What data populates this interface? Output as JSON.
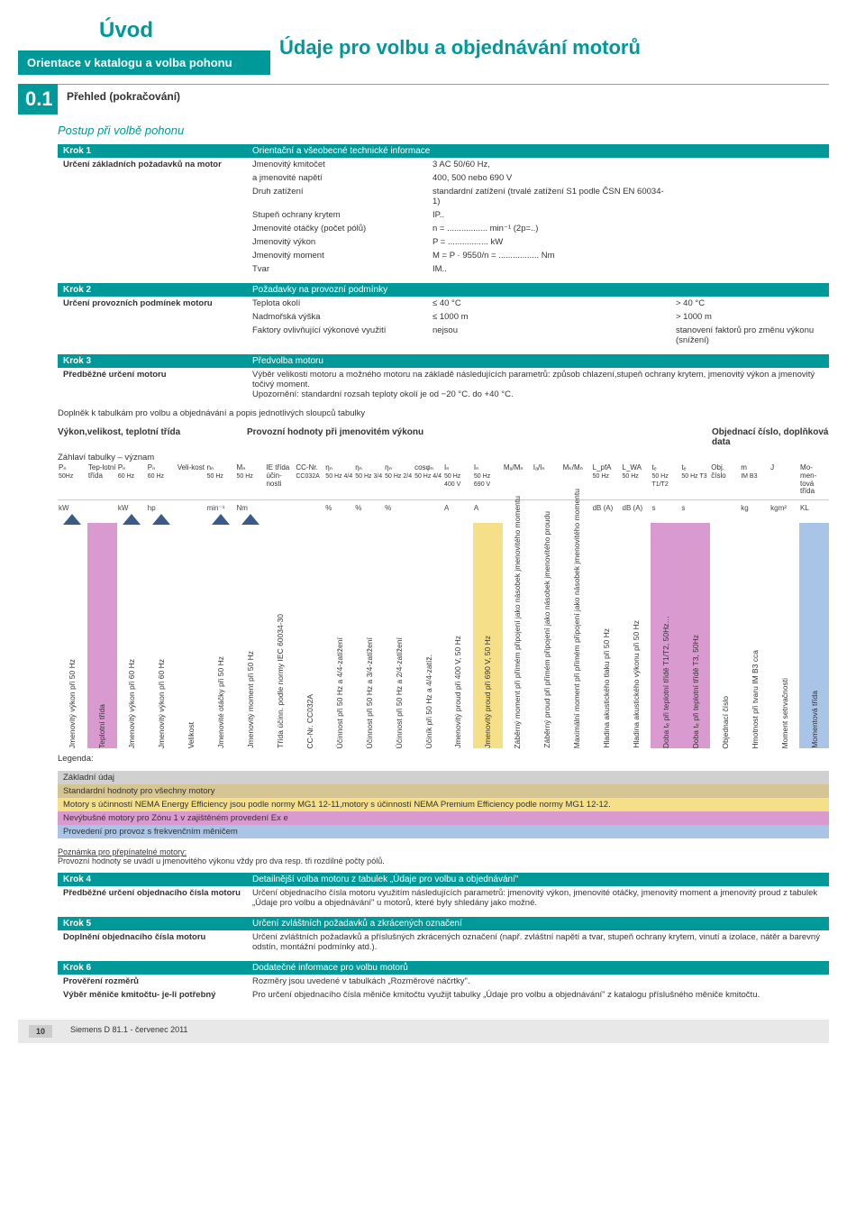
{
  "meta": {
    "uvod": "Úvod",
    "orientation": "Orientace v katalogu a volba pohonu",
    "main_title": "Údaje pro volbu a objednávání motorů",
    "section_num": "0.1",
    "section_title": "Přehled (pokračování)",
    "subtitle": "Postup při volbě pohonu"
  },
  "step1": {
    "header_left": "Krok 1",
    "header_right": "Orientační a všeobecné technické informace",
    "left": "Určení základních požadavků na motor",
    "rows": [
      [
        "Jmenovitý kmitočet",
        "3 AC 50/60 Hz,",
        ""
      ],
      [
        "a jmenovité napětí",
        "400, 500 nebo 690 V",
        ""
      ],
      [
        "Druh zatížení",
        "standardní zatížení (trvalé zatížení S1 podle ČSN EN 60034-1)",
        ""
      ],
      [
        "Stupeň ochrany krytem",
        "IP..",
        ""
      ],
      [
        "Jmenovité otáčky (počet pólů)",
        "n = ................. min⁻¹  (2p=..)",
        ""
      ],
      [
        "Jmenovitý výkon",
        "P = ................. kW",
        ""
      ],
      [
        "Jmenovitý moment",
        "M = P · 9550/n = ................. Nm",
        ""
      ],
      [
        "Tvar",
        "IM..",
        ""
      ]
    ]
  },
  "step2": {
    "header_left": "Krok 2",
    "header_right": "Požadavky na provozní podmínky",
    "left": "Určení provozních podmínek motoru",
    "rows": [
      [
        "Teplota okolí",
        "≤ 40 °C",
        "> 40 °C"
      ],
      [
        "Nadmořská výška",
        "≤ 1000 m",
        "> 1000 m"
      ],
      [
        "Faktory ovlivňující výkonové využití",
        "nejsou",
        "stanovení faktorů pro změnu výkonu (snížení)"
      ]
    ]
  },
  "step3": {
    "header_left": "Krok 3",
    "header_right": "Předvolba motoru",
    "left": "Předběžné určení motoru",
    "text1": "Výběr velikosti motoru a možného motoru na základě následujících parametrů: způsob chlazení,stupeň ochrany krytem, jmenovitý výkon a jmenovitý točivý moment.",
    "text2": "Upozornění:  standardní rozsah teploty okolí je od −20 °C. do +40 °C."
  },
  "tabledesc": {
    "intro": "Doplněk k tabulkám pro volbu a objednávání a popis jednotlivých sloupců tabulky",
    "left": "Výkon,velikost, teplotní třída",
    "mid": "Provozní hodnoty při jmenovitém výkonu",
    "right": "Objednací číslo, doplňková data",
    "zahlavi": "Záhlaví tabulky – význam"
  },
  "param_cols": [
    {
      "t": "Pₙ",
      "s": "50Hz",
      "u": "kW"
    },
    {
      "t": "Tep-lotní třída",
      "s": "",
      "u": ""
    },
    {
      "t": "Pₙ",
      "s": "60 Hz",
      "u": "kW"
    },
    {
      "t": "Pₙ",
      "s": "60 Hz",
      "u": "hp"
    },
    {
      "t": "Veli-kost",
      "s": "",
      "u": ""
    },
    {
      "t": "nₙ",
      "s": "50 Hz",
      "u": "min⁻¹"
    },
    {
      "t": "Mₙ",
      "s": "50 Hz",
      "u": "Nm"
    },
    {
      "t": "IE třída účin-nosti",
      "s": "",
      "u": ""
    },
    {
      "t": "CC-Nr.",
      "s": "CC032A",
      "u": ""
    },
    {
      "t": "ηₙ",
      "s": "50 Hz 4/4",
      "u": "%"
    },
    {
      "t": "ηₙ",
      "s": "50 Hz 3/4",
      "u": "%"
    },
    {
      "t": "ηₙ",
      "s": "50 Hz 2/4",
      "u": "%"
    },
    {
      "t": "cosφₙ",
      "s": "50 Hz 4/4",
      "u": ""
    },
    {
      "t": "Iₙ",
      "s": "50 Hz 400 V",
      "u": "A"
    },
    {
      "t": "Iₙ",
      "s": "50 Hz 690 V",
      "u": "A"
    },
    {
      "t": "Mₐ/Mₙ",
      "s": "",
      "u": ""
    },
    {
      "t": "Iₐ/Iₙ",
      "s": "",
      "u": ""
    },
    {
      "t": "Mₖ/Mₙ",
      "s": "",
      "u": ""
    },
    {
      "t": "L_pfA",
      "s": "50 Hz",
      "u": "dB (A)"
    },
    {
      "t": "L_WA",
      "s": "50 Hz",
      "u": "dB (A)"
    },
    {
      "t": "tₑ",
      "s": "50 Hz T1/T2",
      "u": "s"
    },
    {
      "t": "tₑ",
      "s": "50 Hz T3",
      "u": "s"
    },
    {
      "t": "Obj. číslo",
      "s": "",
      "u": ""
    },
    {
      "t": "m",
      "s": "IM B3",
      "u": "kg"
    },
    {
      "t": "J",
      "s": "",
      "u": "kgm²"
    },
    {
      "t": "Mo-men-tová třída",
      "s": "",
      "u": "KL"
    }
  ],
  "vlegend": [
    {
      "label": "Jmenovitý výkon při 50 Hz",
      "bg": "#ffffff",
      "tri": "#3a5a8a"
    },
    {
      "label": "Teplotní třída",
      "bg": "#d99bcf",
      "tri": ""
    },
    {
      "label": "Jmenovitý výkon při 60 Hz",
      "bg": "#ffffff",
      "tri": "#3a5a8a"
    },
    {
      "label": "Jmenovitý výkon při 60 Hz",
      "bg": "#ffffff",
      "tri": "#3a5a8a"
    },
    {
      "label": "Velikost",
      "bg": "#ffffff",
      "tri": ""
    },
    {
      "label": "Jmenovité otáčky při 50 Hz",
      "bg": "#ffffff",
      "tri": "#3a5a8a"
    },
    {
      "label": "Jmenovitý moment při 50 Hz",
      "bg": "#ffffff",
      "tri": "#3a5a8a"
    },
    {
      "label": "Třída účinn. podle normy IEC 60034-30",
      "bg": "#ffffff",
      "tri": ""
    },
    {
      "label": "CC-Nr. CC032A",
      "bg": "#ffffff",
      "tri": ""
    },
    {
      "label": "Účinnost při 50 Hz a 4/4-zatížení",
      "bg": "#ffffff",
      "tri": ""
    },
    {
      "label": "Účinnost při 50 Hz a 3/4-zatížení",
      "bg": "#ffffff",
      "tri": ""
    },
    {
      "label": "Účinnost při 50 Hz a 2/4-zatížení",
      "bg": "#ffffff",
      "tri": ""
    },
    {
      "label": "Účiník při 50 Hz a 4/4-zatíž.",
      "bg": "#ffffff",
      "tri": ""
    },
    {
      "label": "Jmenovitý proud při 400 V, 50 Hz",
      "bg": "#ffffff",
      "tri": ""
    },
    {
      "label": "Jmenovitý proud při 690 V, 50 Hz",
      "bg": "#f5e089",
      "tri": ""
    },
    {
      "label": "Záběrný moment při přímém připojení jako násobek jmenovitého momentu",
      "bg": "#ffffff",
      "tri": ""
    },
    {
      "label": "Záběrný proud při přímém připojení jako násobek jmenovitého proudu",
      "bg": "#ffffff",
      "tri": ""
    },
    {
      "label": "Maximální moment při přímém připojení jako násobek jmenovitého momentu",
      "bg": "#ffffff",
      "tri": ""
    },
    {
      "label": "Hladina akustického tlaku při 50 Hz",
      "bg": "#ffffff",
      "tri": ""
    },
    {
      "label": "Hladina akustického výkonu při 50 Hz",
      "bg": "#ffffff",
      "tri": ""
    },
    {
      "label": "Doba tₑ při teplotní třídě T1/T2, 50Hz…",
      "bg": "#d99bcf",
      "tri": ""
    },
    {
      "label": "Doba tₑ při teplotní třídě T3, 50Hz",
      "bg": "#d99bcf",
      "tri": ""
    },
    {
      "label": "Objednací číslo",
      "bg": "#ffffff",
      "tri": ""
    },
    {
      "label": "Hmotnost při tvaru IM B3 cca",
      "bg": "#ffffff",
      "tri": ""
    },
    {
      "label": "Moment setrvačnosti",
      "bg": "#ffffff",
      "tri": ""
    },
    {
      "label": "Momentová třída",
      "bg": "#a8c5e8",
      "tri": ""
    }
  ],
  "legend_label": "Legenda:",
  "bands": [
    {
      "cls": "band-gray",
      "text": "Základní údaj"
    },
    {
      "cls": "band-gold",
      "text": "Standardní hodnoty pro všechny motory"
    },
    {
      "cls": "band-yellow",
      "text": "Motory s účinností NEMA Energy Efficiency jsou podle normy MG1 12-11,motory s účinností NEMA Premium Efficiency podle normy MG1 12-12."
    },
    {
      "cls": "band-magenta",
      "text": "Nevýbušné motory pro Zónu 1 v zajištěném provedení Ex e"
    },
    {
      "cls": "band-blue",
      "text": "Provedení pro provoz s frekvenčním měničem"
    }
  ],
  "note": {
    "title": "Poznámka pro přepínatelné motory:",
    "text": "Provozní hodnoty se uvádí u jmenovitého výkonu vždy pro dva resp. tři rozdílné počty pólů."
  },
  "step4": {
    "header_left": "Krok 4",
    "header_right": "Detailnější volba motoru z tabulek „Údaje pro volbu a objednávání\"",
    "left": "Předběžné určení objednacího čísla motoru",
    "text": "Určení objednacího čísla motoru využitím následujících parametrů: jmenovitý výkon, jmenovité otáčky, jmenovitý moment a jmenovitý proud z tabulek „Údaje pro volbu a objednávání\" u motorů, které byly shledány jako možné."
  },
  "step5": {
    "header_left": "Krok 5",
    "header_right": "Určení zvláštních požadavků a zkrácených označení",
    "left": "Doplnění objednacího čísla motoru",
    "text": "Určení zvláštních požadavků a příslušných zkrácených označení (např. zvláštní napětí a tvar, stupeň ochrany krytem, vinutí a izolace, nátěr a barevný odstín, montážní podmínky atd.)."
  },
  "step6": {
    "header_left": "Krok 6",
    "header_right": "Dodatečné informace pro volbu motorů",
    "left1": "Prověření rozměrů",
    "text1": "Rozměry jsou uvedené v tabulkách „Rozměrové náčrtky\".",
    "left2": "Výběr měniče kmitočtu- je-li potřebný",
    "text2": "Pro určení objednacího čísla měniče kmitočtu využijt tabulky „Údaje pro volbu a objednávání\" z katalogu příslušného měniče kmitočtu."
  },
  "footer": {
    "page": "10",
    "text": "Siemens D 81.1 - červenec 2011"
  }
}
